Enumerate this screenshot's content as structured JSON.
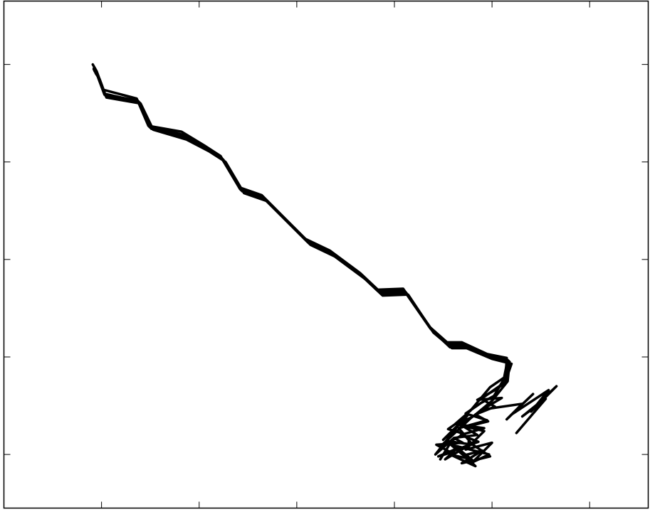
{
  "chart_data": {
    "type": "line",
    "title": "",
    "xlabel": "",
    "ylabel": "",
    "grid": false,
    "legend": "none",
    "xlim": [
      -1,
      5.6
    ],
    "ylim": [
      -0.55,
      4.65
    ],
    "x_ticks": [
      0,
      1,
      2,
      3,
      4,
      5
    ],
    "y_ticks": [
      0,
      1,
      2,
      3,
      4
    ],
    "line_color": "#000000",
    "series": [
      {
        "x": [
          -0.08,
          -0.04,
          0.03,
          0.38,
          0.5,
          0.84,
          1.07,
          1.24,
          1.43,
          1.66,
          1.9,
          2.11,
          2.36,
          2.67,
          2.85,
          3.11,
          3.38,
          3.56,
          3.71,
          3.97,
          4.17,
          4.16,
          3.99,
          3.89,
          4.03,
          3.83,
          3.96,
          3.72,
          3.85,
          3.61,
          3.7,
          3.43,
          3.58,
          3.45,
          3.64,
          3.52,
          3.74,
          3.55,
          3.86,
          3.68,
          3.92,
          3.71
        ],
        "y": [
          3.96,
          3.89,
          3.7,
          3.62,
          3.35,
          3.27,
          3.14,
          3.03,
          2.71,
          2.63,
          2.39,
          2.18,
          2.06,
          1.83,
          1.66,
          1.67,
          1.28,
          1.12,
          1.12,
          1.0,
          0.96,
          0.76,
          0.64,
          0.57,
          0.49,
          0.41,
          0.34,
          0.28,
          0.2,
          0.17,
          0.12,
          0.1,
          0.02,
          -0.02,
          0.06,
          -0.05,
          0.08,
          0.02,
          0.13,
          0.2,
          0.27,
          0.3
        ]
      },
      {
        "x": [
          -0.06,
          -0.02,
          0.05,
          0.4,
          0.53,
          0.87,
          1.1,
          1.27,
          1.46,
          1.69,
          1.93,
          2.14,
          2.39,
          2.7,
          2.88,
          3.14,
          3.4,
          3.59,
          3.74,
          4.0,
          4.2,
          4.13,
          4.03,
          3.85,
          4.1,
          3.9,
          4.31,
          4.15,
          4.42,
          4.2,
          4.58,
          4.4,
          4.66,
          4.47,
          4.31,
          4.55,
          4.25
        ],
        "y": [
          3.91,
          3.85,
          3.66,
          3.6,
          3.33,
          3.23,
          3.11,
          3.0,
          2.68,
          2.6,
          2.36,
          2.15,
          2.03,
          1.8,
          1.63,
          1.64,
          1.25,
          1.09,
          1.09,
          0.98,
          0.93,
          0.73,
          0.66,
          0.56,
          0.58,
          0.46,
          0.52,
          0.36,
          0.62,
          0.41,
          0.66,
          0.44,
          0.7,
          0.52,
          0.39,
          0.57,
          0.22
        ]
      },
      {
        "x": [
          -0.09,
          -0.05,
          0.02,
          0.36,
          0.48,
          0.82,
          1.05,
          1.22,
          1.41,
          1.64,
          1.88,
          2.09,
          2.34,
          2.65,
          2.83,
          3.09,
          3.36,
          3.54,
          3.69,
          3.95,
          4.15,
          4.14,
          3.98,
          3.78,
          3.62,
          3.79,
          3.48,
          3.72,
          3.55,
          3.75,
          3.5,
          3.68,
          3.42,
          3.6,
          3.47
        ],
        "y": [
          4.0,
          3.93,
          3.74,
          3.65,
          3.37,
          3.31,
          3.17,
          3.06,
          2.74,
          2.66,
          2.42,
          2.21,
          2.09,
          1.86,
          1.69,
          1.7,
          1.31,
          1.15,
          1.15,
          1.03,
          0.99,
          0.8,
          0.69,
          0.45,
          0.31,
          0.38,
          0.09,
          0.21,
          0.26,
          0.4,
          0.15,
          0.33,
          0.0,
          0.16,
          -0.05
        ]
      },
      {
        "x": [
          -0.07,
          -0.03,
          0.04,
          0.39,
          0.51,
          0.85,
          1.08,
          1.25,
          1.44,
          1.67,
          1.91,
          2.12,
          2.37,
          2.68,
          2.86,
          3.12,
          3.39,
          3.57,
          3.72,
          3.98,
          4.18,
          4.16,
          4.0,
          3.82,
          3.67,
          3.92,
          3.73,
          4.0,
          3.8,
          3.97,
          3.62,
          3.83,
          3.57,
          3.79,
          3.6
        ],
        "y": [
          3.93,
          3.87,
          3.68,
          3.61,
          3.34,
          3.25,
          3.13,
          3.02,
          2.7,
          2.62,
          2.38,
          2.17,
          2.05,
          1.82,
          1.65,
          1.66,
          1.27,
          1.1,
          1.11,
          0.99,
          0.95,
          0.75,
          0.55,
          0.4,
          0.3,
          0.24,
          0.05,
          0.12,
          -0.08,
          0.0,
          0.09,
          -0.12,
          0.0,
          -0.05,
          0.1
        ]
      },
      {
        "x": [
          -0.08,
          -0.04,
          0.03,
          0.37,
          0.49,
          0.83,
          1.06,
          1.23,
          1.42,
          1.65,
          1.89,
          2.1,
          2.35,
          2.66,
          2.84,
          3.1,
          3.37,
          3.55,
          3.7,
          3.96,
          4.16,
          4.12,
          4.02,
          3.89,
          3.73,
          3.95,
          3.66,
          3.8,
          3.53,
          3.71,
          3.9,
          3.69,
          3.98,
          3.76
        ],
        "y": [
          3.95,
          3.88,
          3.69,
          3.63,
          3.36,
          3.28,
          3.15,
          3.04,
          2.72,
          2.64,
          2.4,
          2.19,
          2.07,
          1.84,
          1.67,
          1.68,
          1.29,
          1.13,
          1.13,
          1.01,
          0.97,
          0.77,
          0.6,
          0.53,
          0.42,
          0.35,
          0.27,
          0.1,
          0.14,
          -0.01,
          0.04,
          -0.09,
          -0.02,
          0.13
        ]
      }
    ]
  }
}
